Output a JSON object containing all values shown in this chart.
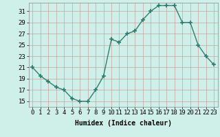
{
  "x": [
    0,
    1,
    2,
    3,
    4,
    5,
    6,
    7,
    8,
    9,
    10,
    11,
    12,
    13,
    14,
    15,
    16,
    17,
    18,
    19,
    20,
    21,
    22,
    23
  ],
  "y": [
    21,
    19.5,
    18.5,
    17.5,
    17,
    15.5,
    15,
    15,
    17,
    19.5,
    26,
    25.5,
    27,
    27.5,
    29.5,
    31,
    32,
    32,
    32,
    29,
    29,
    25,
    23,
    21.5
  ],
  "line_color": "#2e7d6e",
  "marker": "+",
  "marker_size": 4,
  "marker_lw": 1.2,
  "bg_color": "#cff0e8",
  "grid_major_color": "#b0d8d0",
  "grid_minor_color": "#d8eeea",
  "xlabel": "Humidex (Indice chaleur)",
  "xlim": [
    -0.5,
    23.5
  ],
  "ylim": [
    14.0,
    32.5
  ],
  "yticks": [
    15,
    17,
    19,
    21,
    23,
    25,
    27,
    29,
    31
  ],
  "xticks": [
    0,
    1,
    2,
    3,
    4,
    5,
    6,
    7,
    8,
    9,
    10,
    11,
    12,
    13,
    14,
    15,
    16,
    17,
    18,
    19,
    20,
    21,
    22,
    23
  ],
  "xlabel_fontsize": 7,
  "tick_fontsize": 6.5,
  "line_width": 1.0
}
